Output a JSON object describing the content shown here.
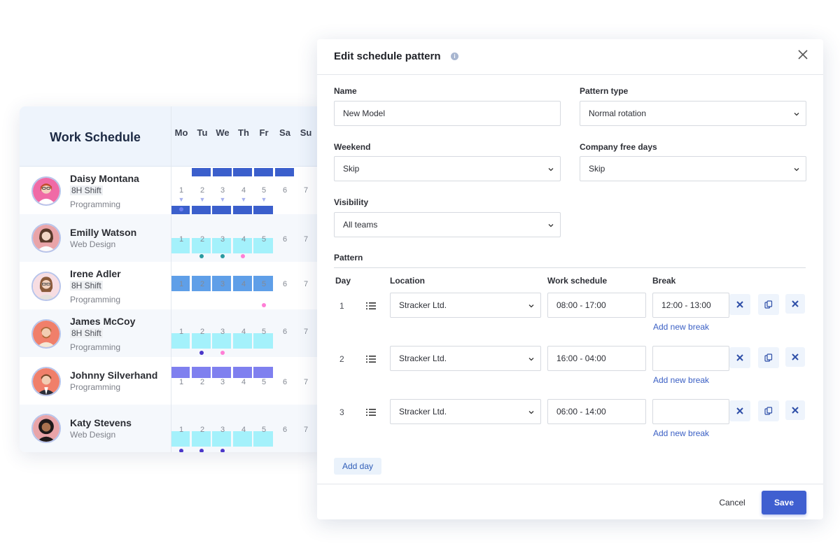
{
  "schedule": {
    "title": "Work Schedule",
    "days": [
      "Mo",
      "Tu",
      "We",
      "Th",
      "Fr",
      "Sa",
      "Su"
    ],
    "people": [
      {
        "name": "Daisy Montana",
        "shift": "8H Shift",
        "dept": "Programming"
      },
      {
        "name": "Emilly Watson",
        "shift": "",
        "dept": "Web Design"
      },
      {
        "name": "Irene Adler",
        "shift": "8H Shift",
        "dept": "Programming"
      },
      {
        "name": "James McCoy",
        "shift": "8H Shift",
        "dept": "Programming"
      },
      {
        "name": "Johnny Silverhand",
        "shift": "",
        "dept": "Programming"
      },
      {
        "name": "Katy Stevens",
        "shift": "",
        "dept": "Web Design"
      }
    ],
    "day_numbers": [
      "1",
      "2",
      "3",
      "4",
      "5",
      "6",
      "7"
    ],
    "colors": {
      "dark_blue": "#3b5fcc",
      "cyan": "#a4f1fb",
      "mid_blue": "#5f9fe8",
      "violet": "#7f80ef",
      "teal_dot": "#2a9aa0",
      "pink_dot": "#ff7fd6",
      "indigo_dot": "#4b37c9"
    }
  },
  "modal": {
    "title": "Edit schedule pattern",
    "info_icon": "info-icon",
    "fields": {
      "name_label": "Name",
      "name_value": "New Model",
      "pattern_type_label": "Pattern type",
      "pattern_type_value": "Normal rotation",
      "weekend_label": "Weekend",
      "weekend_value": "Skip",
      "company_free_days_label": "Company free days",
      "company_free_days_value": "Skip",
      "visibility_label": "Visibility",
      "visibility_value": "All teams"
    },
    "pattern": {
      "label": "Pattern",
      "columns": {
        "day": "Day",
        "location": "Location",
        "work_schedule": "Work schedule",
        "break": "Break"
      },
      "rows": [
        {
          "day": "1",
          "location": "Stracker Ltd.",
          "work_schedule": "08:00 - 17:00",
          "break": "12:00 - 13:00"
        },
        {
          "day": "2",
          "location": "Stracker Ltd.",
          "work_schedule": "16:00 - 04:00",
          "break": ""
        },
        {
          "day": "3",
          "location": "Stracker Ltd.",
          "work_schedule": "06:00 - 14:00",
          "break": ""
        }
      ],
      "add_break_label": "Add new break",
      "add_day_label": "Add day"
    },
    "footer": {
      "cancel_label": "Cancel",
      "save_label": "Save"
    },
    "colors": {
      "primary": "#3f5fd0",
      "link": "#3a5fc4",
      "button_tint": "#eef4fc"
    }
  }
}
